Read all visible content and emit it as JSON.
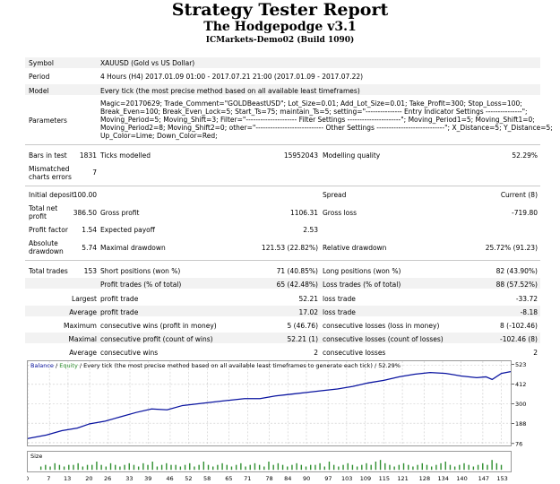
{
  "header": {
    "title": "Strategy Tester Report",
    "subtitle": "The Hodgepodge v3.1",
    "server": "ICMarkets-Demo02 (Build 1090)"
  },
  "info": {
    "symbol_label": "Symbol",
    "symbol_value": "XAUUSD (Gold vs US Dollar)",
    "period_label": "Period",
    "period_value": "4 Hours (H4) 2017.01.09 01:00 - 2017.07.21 21:00 (2017.01.09 - 2017.07.22)",
    "model_label": "Model",
    "model_value": "Every tick (the most precise method based on all available least timeframes)",
    "parameters_label": "Parameters",
    "parameters_lines": [
      "Magic=20170629; Trade_Comment=\"GOLDBeastUSD\"; Lot_Size=0.01; Add_Lot_Size=0.01; Take_Profit=300; Stop_Loss=100;",
      "Break_Even=100; Break_Even_Lock=5; Start_Ts=75; maintain_Ts=5; setting=\"--------------- Entry Indicator Settings ---------------\";",
      "Moving_Period=5; Moving_Shift=3; Filter=\"--------------------- Filter Settings ----------------------\"; Moving_Period1=5; Moving_Shift1=0;",
      "Moving_Period2=8; Moving_Shift2=0; other=\"---------------------------- Other Settings ----------------------------\"; X_Distance=5; Y_Distance=5;",
      "Up_Color=Lime; Down_Color=Red;"
    ]
  },
  "stats": {
    "bars_label": "Bars in test",
    "bars_value": "1831",
    "ticks_label": "Ticks modelled",
    "ticks_value": "15952043",
    "quality_label": "Modelling quality",
    "quality_value": "52.29%",
    "mismatched_label": "Mismatched charts errors",
    "mismatched_value": "7",
    "deposit_label": "Initial deposit",
    "deposit_value": "100.00",
    "spread_label": "Spread",
    "spread_value": "Current (8)",
    "netprofit_label": "Total net profit",
    "netprofit_value": "386.50",
    "grossprofit_label": "Gross profit",
    "grossprofit_value": "1106.31",
    "grossloss_label": "Gross loss",
    "grossloss_value": "-719.80",
    "pf_label": "Profit factor",
    "pf_value": "1.54",
    "payoff_label": "Expected payoff",
    "payoff_value": "2.53",
    "absdd_label": "Absolute drawdown",
    "absdd_value": "5.74",
    "maxdd_label": "Maximal drawdown",
    "maxdd_value": "121.53 (22.82%)",
    "reldd_label": "Relative drawdown",
    "reldd_value": "25.72% (91.23)",
    "trades_label": "Total trades",
    "trades_value": "153",
    "short_label": "Short positions (won %)",
    "short_value": "71 (40.85%)",
    "long_label": "Long positions (won %)",
    "long_value": "82 (43.90%)",
    "pt_label": "Profit trades (% of total)",
    "pt_value": "65 (42.48%)",
    "lt_label": "Loss trades (% of total)",
    "lt_value": "88 (57.52%)",
    "largest_label": "Largest",
    "lpt_label": "profit trade",
    "lpt_value": "52.21",
    "llt_label": "loss trade",
    "llt_value": "-33.72",
    "average_label": "Average",
    "apt_label": "profit trade",
    "apt_value": "17.02",
    "alt_label": "loss trade",
    "alt_value": "-8.18",
    "maximum_label": "Maximum",
    "mcw_label": "consecutive wins (profit in money)",
    "mcw_value": "5 (46.76)",
    "mcl_label": "consecutive losses (loss in money)",
    "mcl_value": "8 (-102.46)",
    "maximal_label": "Maximal",
    "mcp_label": "consecutive profit (count of wins)",
    "mcp_value": "52.21 (1)",
    "mcls_label": "consecutive losses (count of losses)",
    "mcls_value": "-102.46 (8)",
    "average2_label": "Average",
    "acw_label": "consecutive wins",
    "acw_value": "2",
    "acl_label": "consecutive losses",
    "acl_value": "2"
  },
  "chart": {
    "legend_balance": "Balance",
    "legend_sep": " / ",
    "legend_equity": "Equity",
    "legend_rest": " / Every tick (the most precise method based on all available least timeframes to generate each tick) / 52.29%",
    "size_label": "Size",
    "colors": {
      "balance": "#0a14a0",
      "equity": "#2f8f2f",
      "size_bar": "#2f8f2f",
      "grid": "#c8c8c8"
    }
  },
  "chart_data": {
    "type": "line",
    "yticks": [
      76,
      188,
      300,
      412,
      523
    ],
    "ylim": [
      60,
      545
    ],
    "xticks": [
      0,
      7,
      13,
      20,
      26,
      33,
      39,
      46,
      52,
      58,
      65,
      71,
      78,
      84,
      90,
      97,
      103,
      109,
      115,
      121,
      128,
      134,
      140,
      147,
      153
    ],
    "xlim": [
      0,
      156
    ],
    "series": [
      {
        "values": [
          [
            0,
            100
          ],
          [
            6,
            120
          ],
          [
            11,
            145
          ],
          [
            16,
            160
          ],
          [
            20,
            185
          ],
          [
            25,
            200
          ],
          [
            30,
            225
          ],
          [
            35,
            250
          ],
          [
            40,
            270
          ],
          [
            45,
            265
          ],
          [
            50,
            290
          ],
          [
            55,
            300
          ],
          [
            60,
            310
          ],
          [
            65,
            320
          ],
          [
            70,
            330
          ],
          [
            75,
            330
          ],
          [
            80,
            345
          ],
          [
            85,
            355
          ],
          [
            90,
            365
          ],
          [
            95,
            375
          ],
          [
            100,
            385
          ],
          [
            105,
            400
          ],
          [
            110,
            420
          ],
          [
            115,
            435
          ],
          [
            120,
            455
          ],
          [
            125,
            470
          ],
          [
            130,
            480
          ],
          [
            135,
            475
          ],
          [
            140,
            460
          ],
          [
            145,
            450
          ],
          [
            148,
            455
          ],
          [
            150,
            440
          ],
          [
            153,
            475
          ],
          [
            156,
            485
          ]
        ]
      }
    ],
    "size_values": [
      2,
      3,
      2,
      4,
      3,
      2,
      3,
      3,
      4,
      2,
      3,
      3,
      5,
      3,
      2,
      4,
      3,
      2,
      3,
      4,
      3,
      2,
      4,
      3,
      5,
      2,
      3,
      4,
      3,
      3,
      2,
      3,
      4,
      2,
      3,
      5,
      3,
      2,
      3,
      4,
      3,
      2,
      3,
      4,
      2,
      3,
      4,
      3,
      2,
      5,
      3,
      4,
      3,
      2,
      3,
      4,
      3,
      2,
      3,
      3,
      4,
      2,
      5,
      3,
      2,
      3,
      4,
      3,
      2,
      3,
      4,
      3,
      5,
      6,
      4,
      3,
      2,
      3,
      4,
      3,
      2,
      3,
      4,
      3,
      2,
      3,
      4,
      5,
      3,
      2,
      3,
      4,
      3,
      2,
      3,
      4,
      3,
      6,
      4,
      3
    ]
  }
}
